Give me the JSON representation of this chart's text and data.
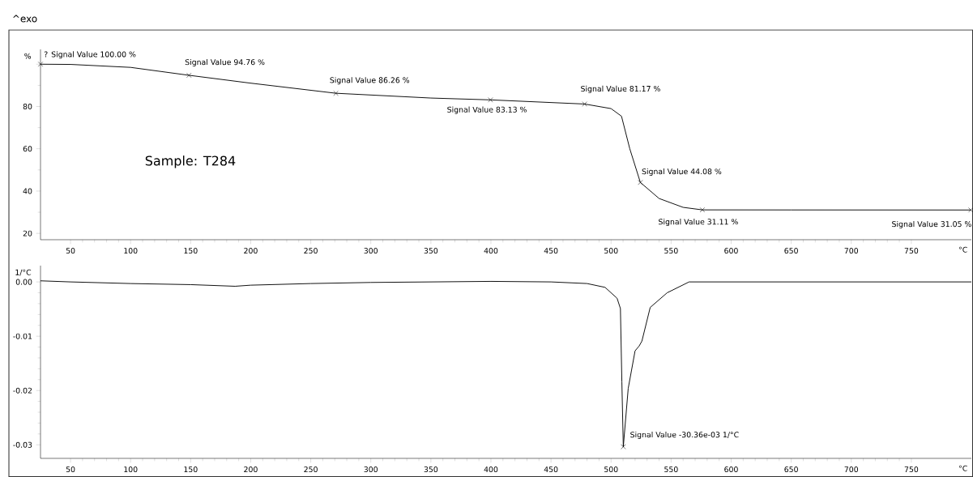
{
  "chart_data": [
    {
      "type": "line",
      "xlabel": "°C",
      "ylabel": "%",
      "xlim": [
        25,
        800
      ],
      "ylim": [
        17,
        107
      ],
      "xticks": [
        50,
        100,
        150,
        200,
        250,
        300,
        350,
        400,
        450,
        500,
        550,
        600,
        650,
        700,
        750
      ],
      "yticks": [
        20,
        40,
        60,
        80,
        {
          "value": 100,
          "label": null
        }
      ],
      "series": [
        {
          "color": "#000000",
          "x": [
            25,
            50,
            100,
            148.6,
            199,
            270.9,
            350,
            399.6,
            478,
            500,
            508.7,
            515.6,
            524.4,
            540,
            560,
            576,
            650,
            799.5
          ],
          "values": [
            100,
            99.9,
            98.5,
            94.76,
            91.1,
            86.26,
            84,
            83.13,
            81.17,
            79,
            75.4,
            60,
            44.08,
            36.5,
            32.3,
            31.11,
            31.08,
            31.05
          ]
        }
      ],
      "annotations": [
        "^exo",
        "Sample: T284",
        {
          "text": "? Signal Value 100.00 %",
          "x": 25,
          "y": 100
        },
        {
          "text": "Signal Value 94.76 %",
          "x": 148.6,
          "y": 94.76
        },
        {
          "text": "Signal Value 86.26 %",
          "x": 270.9,
          "y": 86.26
        },
        {
          "text": "Signal Value 83.13 %",
          "x": 399.6,
          "y": 83.13
        },
        {
          "text": "Signal Value 81.17 %",
          "x": 478,
          "y": 81.17
        },
        {
          "text": "Signal Value 44.08 %",
          "x": 524.4,
          "y": 44.08
        },
        {
          "text": "Signal Value 31.11 %",
          "x": 576,
          "y": 31.11
        },
        {
          "text": "Signal Value 31.05 %",
          "x": 799.5,
          "y": 31.05
        }
      ]
    },
    {
      "type": "line",
      "xlabel": "°C",
      "ylabel": "1/°C",
      "xlim": [
        25,
        800
      ],
      "ylim": [
        -0.0325,
        0.003
      ],
      "xticks": [
        50,
        100,
        150,
        200,
        250,
        300,
        350,
        400,
        450,
        500,
        550,
        600,
        650,
        700,
        750
      ],
      "yticks": [
        -0.03,
        -0.02,
        -0.01,
        {
          "value": 0,
          "label": "0.00"
        }
      ],
      "series": [
        {
          "color": "#000000",
          "x": [
            25,
            50,
            100,
            150,
            187,
            200,
            250,
            300,
            400,
            450,
            480,
            495,
            505,
            507.8,
            509,
            510.2,
            514.3,
            520,
            523.4,
            525.7,
            532.6,
            546.7,
            565,
            650,
            800
          ],
          "values": [
            0.0002,
            0.0,
            -0.0003,
            -0.0005,
            -0.0008,
            -0.0006,
            -0.0003,
            -0.0001,
            0.0001,
            0.0,
            -0.0003,
            -0.001,
            -0.003,
            -0.0049,
            -0.0184,
            -0.03036,
            -0.0196,
            -0.0127,
            -0.0118,
            -0.0109,
            -0.0047,
            -0.002,
            0.0,
            0.0,
            0.0
          ]
        }
      ],
      "annotations": [
        {
          "text": "Signal Value -30.36e-03 1/°C",
          "x": 510.2,
          "y": -0.03036
        }
      ]
    }
  ]
}
